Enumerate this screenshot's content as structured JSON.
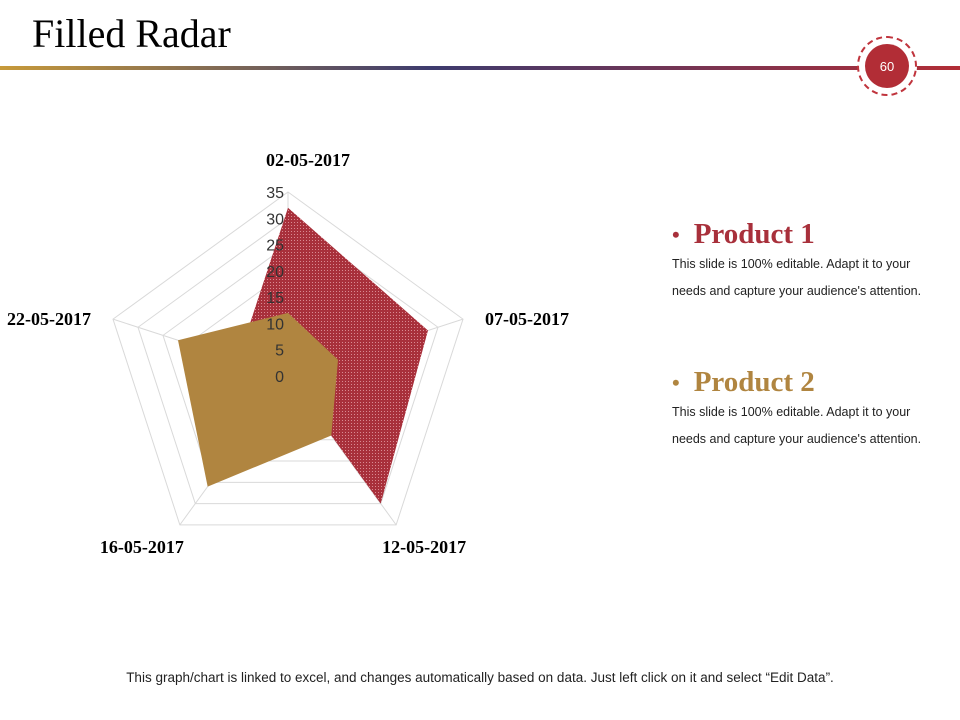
{
  "slide": {
    "title": "Filled Radar",
    "page_number": "60",
    "footer": "This graph/chart is linked to excel, and changes automatically  based on data. Just left click on it and select “Edit Data”."
  },
  "legend": [
    {
      "label": "Product 1",
      "desc": "This slide is 100% editable. Adapt it to your needs and capture your audience's attention.",
      "color": "#a8303b"
    },
    {
      "label": "Product 2",
      "desc": "This slide is 100% editable. Adapt it to your needs and capture your audience's attention.",
      "color": "#b08540"
    }
  ],
  "chart_data": {
    "type": "radar",
    "title": "",
    "categories": [
      "02-05-2017",
      "07-05-2017",
      "12-05-2017",
      "16-05-2017",
      "22-05-2017"
    ],
    "ticks": [
      0,
      5,
      10,
      15,
      20,
      25,
      30,
      35
    ],
    "rlim": [
      0,
      35
    ],
    "series": [
      {
        "name": "Product 1",
        "values": [
          32,
          28,
          30,
          0,
          10
        ],
        "color": "#a8303b"
      },
      {
        "name": "Product 2",
        "values": [
          12,
          10,
          14,
          26,
          22
        ],
        "color": "#b08540"
      }
    ]
  }
}
